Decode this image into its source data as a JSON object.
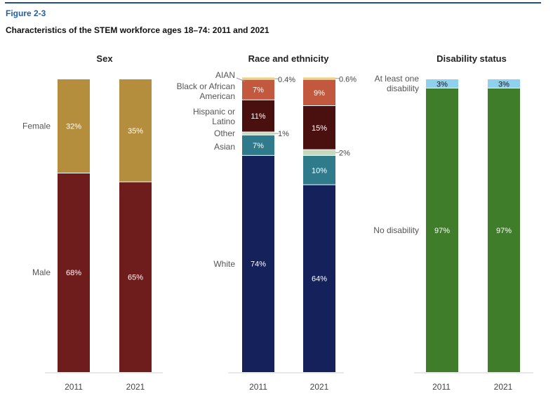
{
  "figure_label": "Figure 2-3",
  "title": "Characteristics of the STEM workforce ages 18–74: 2011 and 2021",
  "colors": {
    "female": "#b48e3c",
    "male": "#6e1c1c",
    "aian": "#f2c94c",
    "black": "#c2583e",
    "hispanic": "#4a0f0f",
    "other": "#c5d9be",
    "asian": "#2f7b8c",
    "white": "#14215a",
    "at_least_one_disability": "#8fd0ee",
    "no_disability": "#3f7d2a",
    "leader": "#999999",
    "axis": "#d0d0d0"
  },
  "chart_data": [
    {
      "type": "bar",
      "stacked": true,
      "percent": true,
      "title": "Sex",
      "categories": [
        "2011",
        "2021"
      ],
      "ylim": [
        0,
        100
      ],
      "series": [
        {
          "name": "Male",
          "key": "male",
          "values": [
            68,
            65
          ],
          "labels": [
            "68%",
            "65%"
          ]
        },
        {
          "name": "Female",
          "key": "female",
          "values": [
            32,
            35
          ],
          "labels": [
            "32%",
            "35%"
          ]
        }
      ]
    },
    {
      "type": "bar",
      "stacked": true,
      "percent": true,
      "title": "Race and ethnicity",
      "categories": [
        "2011",
        "2021"
      ],
      "ylim": [
        0,
        100
      ],
      "series": [
        {
          "name": "White",
          "key": "white",
          "values": [
            74,
            64
          ],
          "labels": [
            "74%",
            "64%"
          ]
        },
        {
          "name": "Asian",
          "key": "asian",
          "values": [
            7,
            10
          ],
          "labels": [
            "7%",
            "10%"
          ]
        },
        {
          "name": "Other",
          "key": "other",
          "values": [
            1,
            2
          ],
          "labels": [
            "1%",
            "2%"
          ]
        },
        {
          "name": "Hispanic or Latino",
          "key": "hispanic",
          "values": [
            11,
            15
          ],
          "labels": [
            "11%",
            "15%"
          ]
        },
        {
          "name": "Black or African American",
          "key": "black",
          "values": [
            7,
            9
          ],
          "labels": [
            "7%",
            "9%"
          ]
        },
        {
          "name": "AIAN",
          "key": "aian",
          "values": [
            0.4,
            0.6
          ],
          "labels": [
            "0.4%",
            "0.6%"
          ]
        }
      ]
    },
    {
      "type": "bar",
      "stacked": true,
      "percent": true,
      "title": "Disability status",
      "categories": [
        "2011",
        "2021"
      ],
      "ylim": [
        0,
        100
      ],
      "series": [
        {
          "name": "No disability",
          "key": "no_disability",
          "values": [
            97,
            97
          ],
          "labels": [
            "97%",
            "97%"
          ]
        },
        {
          "name": "At least one disability",
          "key": "at_least_one_disability",
          "values": [
            3,
            3
          ],
          "labels": [
            "3%",
            "3%"
          ]
        }
      ]
    }
  ]
}
